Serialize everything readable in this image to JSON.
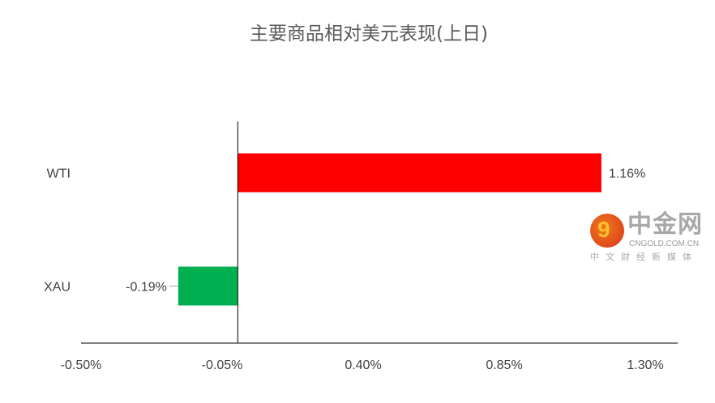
{
  "chart_data": {
    "type": "bar",
    "orientation": "horizontal",
    "title": "主要商品相对美元表现(上日)",
    "categories": [
      "WTI",
      "XAU"
    ],
    "values": [
      1.16,
      -0.19
    ],
    "data_labels": [
      "1.16%",
      "-0.19%"
    ],
    "colors": [
      "#ff0000",
      "#00b050"
    ],
    "xlim": [
      -0.5,
      1.3
    ],
    "x_ticks": [
      -0.5,
      -0.05,
      0.4,
      0.85,
      1.3
    ],
    "x_tick_labels": [
      "-0.50%",
      "-0.05%",
      "0.40%",
      "0.85%",
      "1.30%"
    ],
    "grid": false,
    "legend": "none"
  },
  "watermark": {
    "name": "中金网",
    "domain": "CNGOLD.COM.CN",
    "slogan": "中文财经新媒体"
  }
}
